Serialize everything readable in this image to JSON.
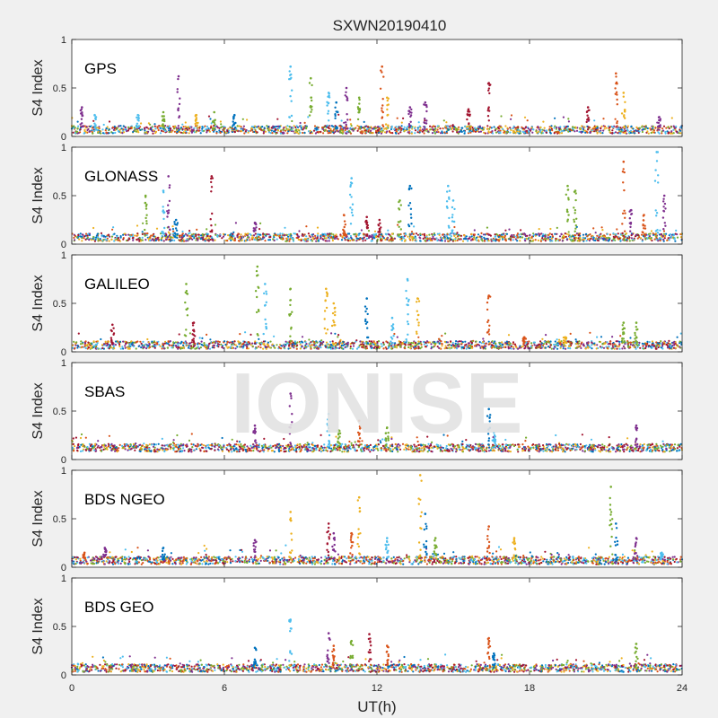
{
  "figure_title": "SXWN20190410",
  "watermark": "IONISE",
  "chart_data": [
    {
      "type": "scatter",
      "panel_label": "GPS",
      "xlabel": "",
      "ylabel": "S4 Index",
      "xlim": [
        0,
        24
      ],
      "ylim": [
        0,
        1
      ],
      "x_ticks": [
        0,
        6,
        12,
        18,
        24
      ],
      "y_ticks": [
        0,
        0.5,
        1
      ],
      "baseline": 0.07,
      "spikes": [
        [
          0.4,
          0.3
        ],
        [
          0.9,
          0.22
        ],
        [
          2.6,
          0.22
        ],
        [
          3.6,
          0.25
        ],
        [
          4.2,
          0.62
        ],
        [
          4.9,
          0.22
        ],
        [
          5.6,
          0.25
        ],
        [
          6.4,
          0.22
        ],
        [
          8.6,
          0.72
        ],
        [
          9.4,
          0.6
        ],
        [
          10.1,
          0.45
        ],
        [
          10.4,
          0.35
        ],
        [
          10.8,
          0.5
        ],
        [
          11.3,
          0.4
        ],
        [
          12.2,
          0.72
        ],
        [
          12.4,
          0.4
        ],
        [
          13.3,
          0.3
        ],
        [
          13.9,
          0.35
        ],
        [
          15.6,
          0.28
        ],
        [
          16.4,
          0.55
        ],
        [
          20.3,
          0.3
        ],
        [
          21.4,
          0.65
        ],
        [
          21.7,
          0.45
        ],
        [
          23.1,
          0.2
        ]
      ],
      "grid": false
    },
    {
      "type": "scatter",
      "panel_label": "GLONASS",
      "xlabel": "",
      "ylabel": "S4 Index",
      "xlim": [
        0,
        24
      ],
      "ylim": [
        0,
        1
      ],
      "x_ticks": [
        0,
        6,
        12,
        18,
        24
      ],
      "y_ticks": [
        0,
        0.5,
        1
      ],
      "baseline": 0.07,
      "spikes": [
        [
          2.9,
          0.5
        ],
        [
          3.6,
          0.55
        ],
        [
          3.8,
          0.7
        ],
        [
          4.1,
          0.25
        ],
        [
          5.5,
          0.7
        ],
        [
          7.2,
          0.22
        ],
        [
          10.7,
          0.3
        ],
        [
          11.0,
          0.68
        ],
        [
          11.6,
          0.28
        ],
        [
          12.1,
          0.25
        ],
        [
          12.9,
          0.45
        ],
        [
          13.3,
          0.6
        ],
        [
          14.8,
          0.6
        ],
        [
          15.0,
          0.45
        ],
        [
          19.5,
          0.6
        ],
        [
          19.8,
          0.55
        ],
        [
          21.7,
          0.85
        ],
        [
          22.0,
          0.35
        ],
        [
          22.5,
          0.3
        ],
        [
          23.0,
          0.95
        ],
        [
          23.3,
          0.5
        ]
      ],
      "grid": false
    },
    {
      "type": "scatter",
      "panel_label": "GALILEO",
      "xlabel": "",
      "ylabel": "S4 Index",
      "xlim": [
        0,
        24
      ],
      "ylim": [
        0,
        1
      ],
      "x_ticks": [
        0,
        6,
        12,
        18,
        24
      ],
      "y_ticks": [
        0,
        0.5,
        1
      ],
      "baseline": 0.07,
      "spikes": [
        [
          1.6,
          0.28
        ],
        [
          4.5,
          0.7
        ],
        [
          4.8,
          0.3
        ],
        [
          7.3,
          0.88
        ],
        [
          7.6,
          0.7
        ],
        [
          8.6,
          0.65
        ],
        [
          10.0,
          0.65
        ],
        [
          10.3,
          0.5
        ],
        [
          11.6,
          0.55
        ],
        [
          12.6,
          0.35
        ],
        [
          13.2,
          0.75
        ],
        [
          13.6,
          0.55
        ],
        [
          16.4,
          0.58
        ],
        [
          17.8,
          0.15
        ],
        [
          19.4,
          0.15
        ],
        [
          21.7,
          0.3
        ],
        [
          22.2,
          0.3
        ]
      ],
      "grid": false
    },
    {
      "type": "scatter",
      "panel_label": "SBAS",
      "xlabel": "",
      "ylabel": "S4 Index",
      "xlim": [
        0,
        24
      ],
      "ylim": [
        0,
        1
      ],
      "x_ticks": [
        0,
        6,
        12,
        18,
        24
      ],
      "y_ticks": [
        0,
        0.5,
        1
      ],
      "baseline": 0.12,
      "spikes": [
        [
          7.2,
          0.35
        ],
        [
          8.6,
          0.68
        ],
        [
          10.1,
          0.47
        ],
        [
          10.5,
          0.3
        ],
        [
          11.3,
          0.4
        ],
        [
          12.4,
          0.33
        ],
        [
          16.4,
          0.52
        ],
        [
          16.6,
          0.28
        ],
        [
          22.2,
          0.35
        ]
      ],
      "grid": false
    },
    {
      "type": "scatter",
      "panel_label": "BDS NGEO",
      "xlabel": "",
      "ylabel": "S4 Index",
      "xlim": [
        0,
        24
      ],
      "ylim": [
        0,
        1
      ],
      "x_ticks": [
        0,
        6,
        12,
        18,
        24
      ],
      "y_ticks": [
        0,
        0.5,
        1
      ],
      "baseline": 0.07,
      "spikes": [
        [
          0.5,
          0.15
        ],
        [
          1.3,
          0.2
        ],
        [
          3.6,
          0.2
        ],
        [
          7.2,
          0.28
        ],
        [
          8.6,
          0.57
        ],
        [
          10.1,
          0.45
        ],
        [
          10.3,
          0.35
        ],
        [
          11.0,
          0.35
        ],
        [
          11.3,
          0.72
        ],
        [
          12.4,
          0.3
        ],
        [
          13.7,
          0.95
        ],
        [
          13.9,
          0.55
        ],
        [
          14.3,
          0.3
        ],
        [
          16.4,
          0.42
        ],
        [
          17.4,
          0.3
        ],
        [
          21.2,
          0.83
        ],
        [
          21.4,
          0.45
        ],
        [
          22.2,
          0.3
        ],
        [
          23.2,
          0.15
        ]
      ],
      "grid": false
    },
    {
      "type": "scatter",
      "panel_label": "BDS GEO",
      "xlabel": "UT(h)",
      "ylabel": "S4 Index",
      "xlim": [
        0,
        24
      ],
      "ylim": [
        0,
        1
      ],
      "x_ticks": [
        0,
        6,
        12,
        18,
        24
      ],
      "y_ticks": [
        0,
        0.5,
        1
      ],
      "baseline": 0.07,
      "spikes": [
        [
          7.2,
          0.28
        ],
        [
          8.6,
          0.57
        ],
        [
          10.1,
          0.43
        ],
        [
          10.3,
          0.3
        ],
        [
          11.0,
          0.35
        ],
        [
          11.7,
          0.42
        ],
        [
          12.4,
          0.3
        ],
        [
          16.4,
          0.38
        ],
        [
          16.6,
          0.22
        ],
        [
          22.2,
          0.32
        ]
      ],
      "grid": false
    }
  ],
  "colors": {
    "series": [
      "#0072bd",
      "#d95319",
      "#edb120",
      "#7e2f8e",
      "#77ac30",
      "#4dbeee",
      "#a2142f"
    ],
    "figure_bg": "#f0f0f0",
    "axes_bg": "#ffffff",
    "axis": "#262626",
    "watermark": "#e3e3e3"
  }
}
